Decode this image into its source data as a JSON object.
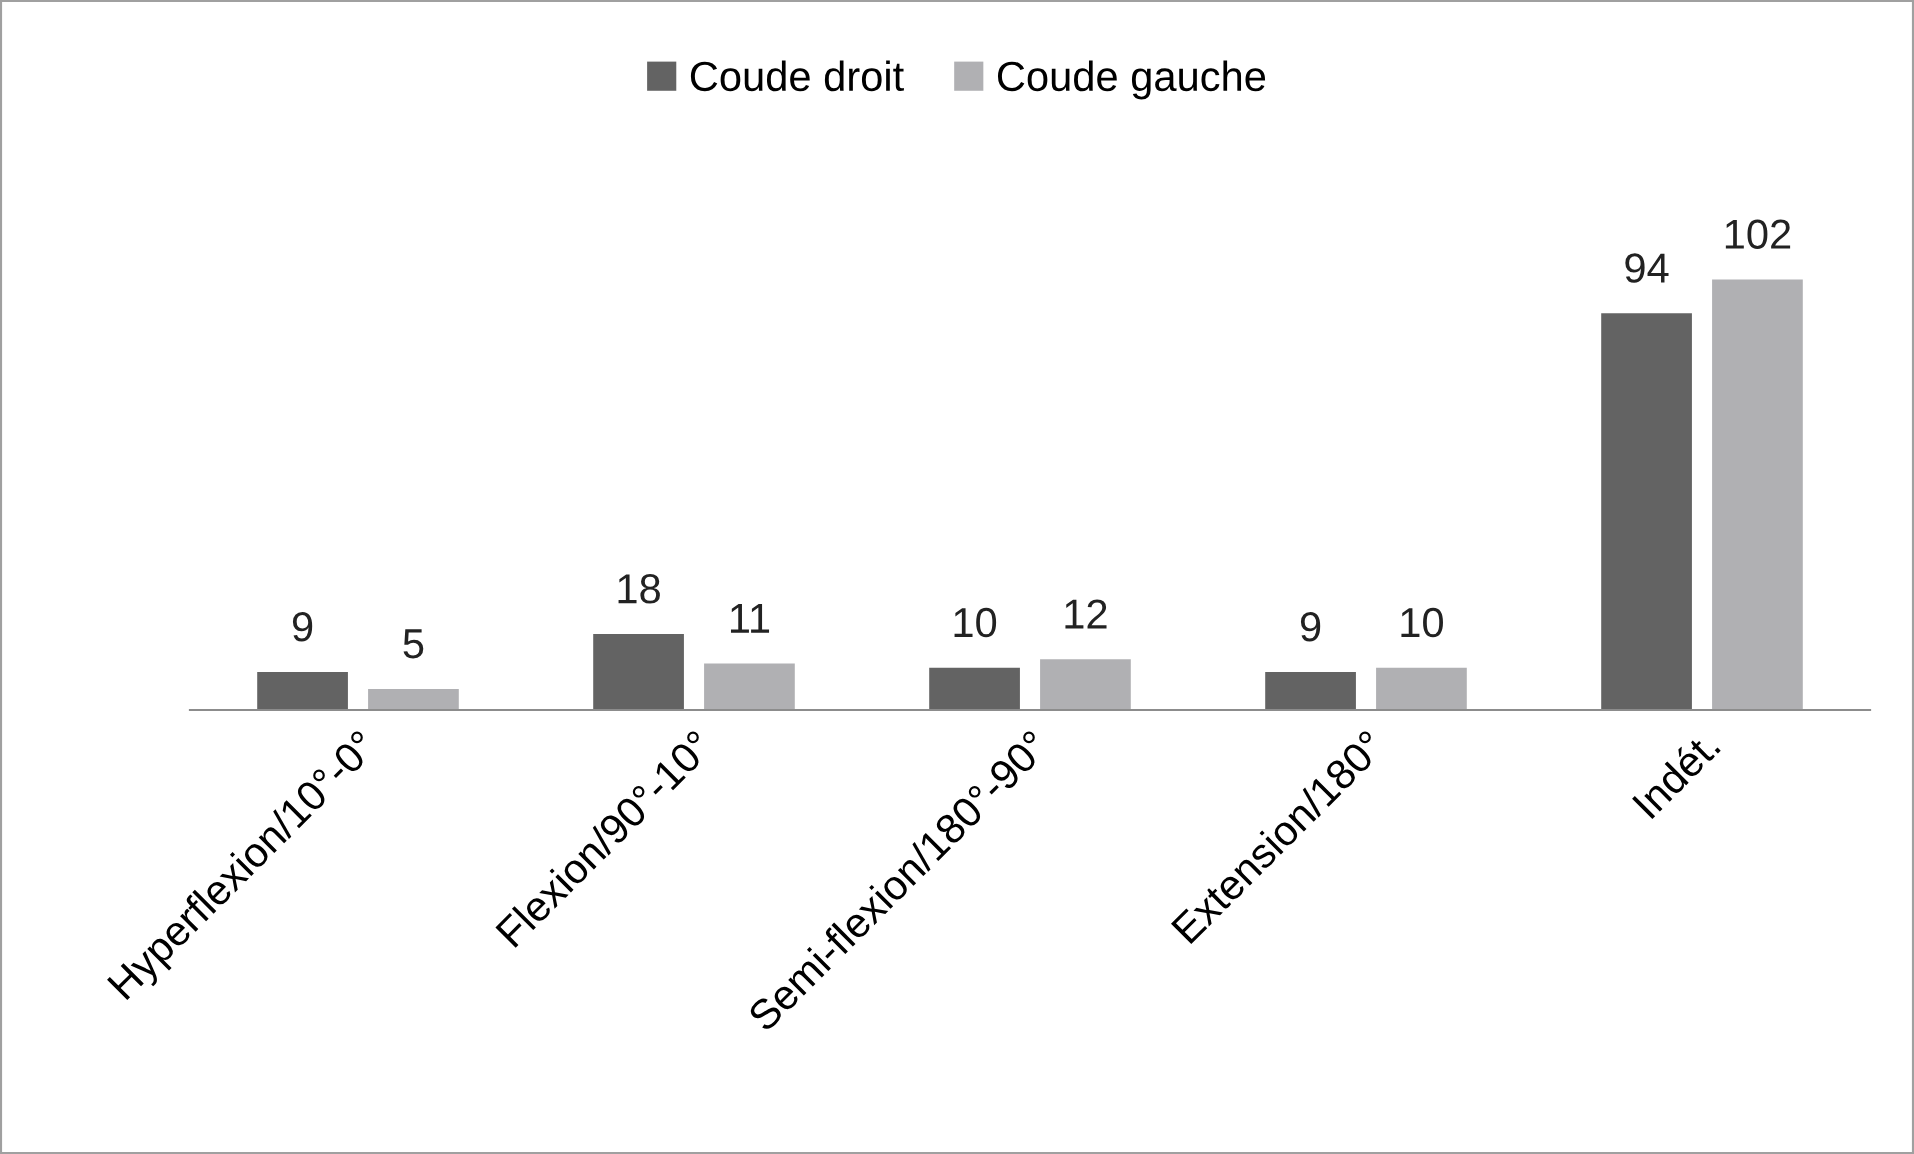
{
  "chart_data": {
    "type": "bar",
    "categories": [
      "Hyperflexion/10°-0°",
      "Flexion/90°-10°",
      "Semi-flexion/180°-90°",
      "Extension/180°",
      "Indét."
    ],
    "series": [
      {
        "name": "Coude droit",
        "color": "#636363",
        "values": [
          9,
          18,
          10,
          9,
          94
        ]
      },
      {
        "name": "Coude gauche",
        "color": "#b0b0b3",
        "values": [
          5,
          11,
          12,
          10,
          102
        ]
      }
    ],
    "data_labels": true,
    "grid": false,
    "legend": "top",
    "tick_labels": "x"
  }
}
